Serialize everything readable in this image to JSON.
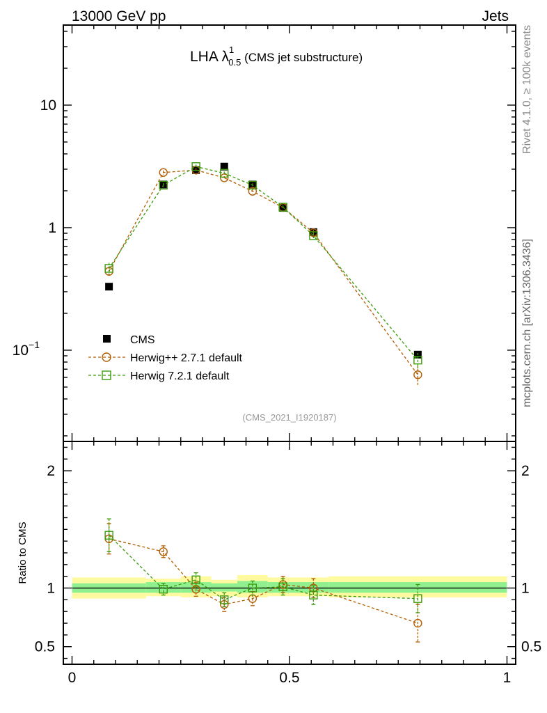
{
  "header": {
    "left": "13000 GeV pp",
    "right": "Jets"
  },
  "side_labels": {
    "upper": "Rivet 4.1.0, ≥ 100k events",
    "lower": "mcplots.cern.ch [arXiv:1306.3436]"
  },
  "chart_data": {
    "type": "line",
    "title": {
      "main": "LHA λ",
      "sup": "1",
      "sub": "0.5",
      "suffix": " (CMS jet substructure)"
    },
    "analysis_id": "(CMS_2021_I1920187)",
    "main_panel": {
      "yscale": "log",
      "ylim": [
        0.018,
        45
      ],
      "yticks": [
        {
          "value": 0.1,
          "label": "10",
          "sup": "−1"
        },
        {
          "value": 1,
          "label": "1",
          "sup": ""
        },
        {
          "value": 10,
          "label": "10",
          "sup": ""
        }
      ]
    },
    "ratio_panel": {
      "ylabel": "Ratio to CMS",
      "ylim": [
        0.35,
        2.25
      ],
      "yticks": [
        {
          "value": 0.5,
          "label": "0.5"
        },
        {
          "value": 1,
          "label": "1"
        },
        {
          "value": 2,
          "label": "2"
        }
      ],
      "bands": [
        {
          "x0": 0.0,
          "x1": 0.17,
          "inner": [
            0.96,
            1.04
          ],
          "outer": [
            0.91,
            1.09
          ]
        },
        {
          "x0": 0.17,
          "x1": 0.25,
          "inner": [
            0.96,
            1.05
          ],
          "outer": [
            0.93,
            1.08
          ]
        },
        {
          "x0": 0.25,
          "x1": 0.32,
          "inner": [
            0.96,
            1.05
          ],
          "outer": [
            0.92,
            1.1
          ]
        },
        {
          "x0": 0.32,
          "x1": 0.38,
          "inner": [
            0.97,
            1.04
          ],
          "outer": [
            0.93,
            1.07
          ]
        },
        {
          "x0": 0.38,
          "x1": 0.45,
          "inner": [
            0.96,
            1.06
          ],
          "outer": [
            0.92,
            1.11
          ]
        },
        {
          "x0": 0.45,
          "x1": 0.52,
          "inner": [
            0.96,
            1.05
          ],
          "outer": [
            0.93,
            1.09
          ]
        },
        {
          "x0": 0.52,
          "x1": 0.59,
          "inner": [
            0.96,
            1.05
          ],
          "outer": [
            0.93,
            1.09
          ]
        },
        {
          "x0": 0.59,
          "x1": 1.0,
          "inner": [
            0.96,
            1.05
          ],
          "outer": [
            0.92,
            1.1
          ]
        }
      ]
    },
    "xlim": [
      -0.02,
      1.02
    ],
    "xticks": [
      {
        "value": 0,
        "label": "0"
      },
      {
        "value": 0.5,
        "label": "0.5"
      },
      {
        "value": 1,
        "label": "1"
      }
    ],
    "series": [
      {
        "name": "CMS",
        "style": "data",
        "color": "#000000",
        "x": [
          0.085,
          0.21,
          0.285,
          0.35,
          0.415,
          0.485,
          0.555,
          0.795
        ],
        "y": [
          0.33,
          2.25,
          2.95,
          3.15,
          2.25,
          1.45,
          0.92,
          0.092
        ]
      },
      {
        "name": "Herwig++ 2.7.1 default",
        "style": "circle",
        "color": "#b35c00",
        "x": [
          0.085,
          0.21,
          0.285,
          0.35,
          0.415,
          0.485,
          0.555,
          0.795
        ],
        "y": [
          0.44,
          2.82,
          2.95,
          2.55,
          1.98,
          1.46,
          0.91,
          0.063
        ],
        "yerr": [
          0.04,
          0.1,
          0.1,
          0.08,
          0.07,
          0.05,
          0.05,
          0.012
        ],
        "ratio": [
          1.42,
          1.31,
          0.99,
          0.86,
          0.91,
          1.03,
          1.0,
          0.7
        ],
        "ratio_err": [
          0.13,
          0.05,
          0.06,
          0.06,
          0.06,
          0.07,
          0.08,
          0.16
        ]
      },
      {
        "name": "Herwig 7.2.1 default",
        "style": "square",
        "color": "#3a9a0a",
        "x": [
          0.085,
          0.21,
          0.285,
          0.35,
          0.415,
          0.485,
          0.555,
          0.795
        ],
        "y": [
          0.465,
          2.22,
          3.15,
          2.78,
          2.22,
          1.47,
          0.86,
          0.083
        ],
        "yerr": [
          0.05,
          0.09,
          0.12,
          0.09,
          0.08,
          0.05,
          0.05,
          0.012
        ],
        "ratio": [
          1.45,
          0.99,
          1.07,
          0.9,
          1.0,
          1.01,
          0.94,
          0.91
        ],
        "ratio_err": [
          0.14,
          0.05,
          0.06,
          0.06,
          0.06,
          0.07,
          0.08,
          0.12
        ]
      }
    ]
  }
}
